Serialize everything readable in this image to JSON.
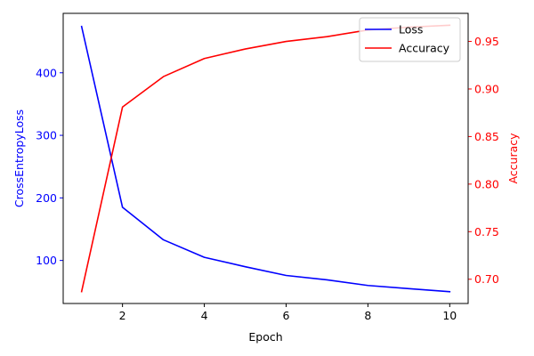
{
  "chart_data": {
    "type": "line",
    "xlabel": "Epoch",
    "ylabel_left": "CrossEntropyLoss",
    "ylabel_right": "Accuracy",
    "xlim": [
      0.55,
      10.45
    ],
    "ylim_left": [
      31.2,
      495.0
    ],
    "ylim_right": [
      0.6745,
      0.9795
    ],
    "x_ticks": [
      2,
      4,
      6,
      8,
      10
    ],
    "y_ticks_left": [
      100,
      200,
      300,
      400
    ],
    "y_ticks_right": [
      0.7,
      0.75,
      0.8,
      0.85,
      0.9,
      0.95
    ],
    "x": [
      1,
      2,
      3,
      4,
      5,
      6,
      7,
      8,
      9,
      10
    ],
    "series": [
      {
        "name": "Loss",
        "axis": "left",
        "color": "#0000ff",
        "values": [
          474,
          185,
          133,
          105,
          90,
          76,
          69,
          60,
          55,
          50
        ]
      },
      {
        "name": "Accuracy",
        "axis": "right",
        "color": "#ff0000",
        "values": [
          0.687,
          0.881,
          0.913,
          0.932,
          0.942,
          0.95,
          0.955,
          0.962,
          0.965,
          0.967
        ]
      }
    ],
    "legend": {
      "placement": "top-right",
      "entries": [
        "Loss",
        "Accuracy"
      ]
    },
    "grid": false
  }
}
